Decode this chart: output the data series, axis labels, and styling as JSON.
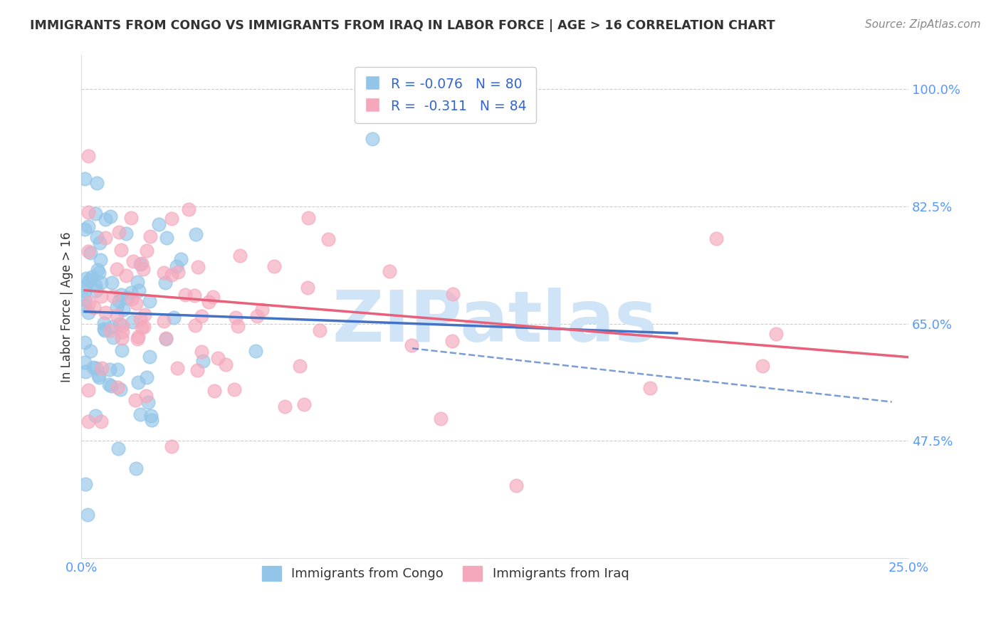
{
  "title": "IMMIGRANTS FROM CONGO VS IMMIGRANTS FROM IRAQ IN LABOR FORCE | AGE > 16 CORRELATION CHART",
  "source": "Source: ZipAtlas.com",
  "ylabel": "In Labor Force | Age > 16",
  "xlim": [
    0.0,
    0.25
  ],
  "ylim": [
    0.3,
    1.05
  ],
  "ytick_vals": [
    0.475,
    0.65,
    0.825,
    1.0
  ],
  "ytick_labels": [
    "47.5%",
    "65.0%",
    "82.5%",
    "100.0%"
  ],
  "xtick_vals": [
    0.0,
    0.05,
    0.1,
    0.15,
    0.2,
    0.25
  ],
  "xtick_labels": [
    "0.0%",
    "",
    "",
    "",
    "",
    "25.0%"
  ],
  "congo_color": "#92C5E8",
  "iraq_color": "#F5A8BC",
  "congo_line_color": "#4472C4",
  "iraq_line_color": "#E8607A",
  "watermark": "ZIPatlas",
  "watermark_color": "#D0E4F7",
  "congo_R": -0.076,
  "congo_N": 80,
  "iraq_R": -0.311,
  "iraq_N": 84,
  "background_color": "#FFFFFF",
  "grid_color": "#CCCCCC",
  "tick_color": "#5599FF",
  "title_color": "#333333",
  "source_color": "#888888",
  "ylabel_color": "#333333"
}
